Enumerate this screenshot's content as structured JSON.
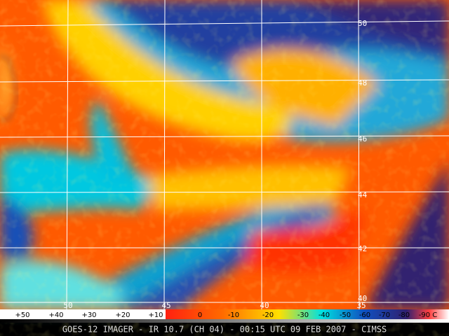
{
  "grid_labels": {
    "latitudes": [
      "50",
      "48",
      "46",
      "44",
      "42",
      "40"
    ],
    "longitudes": [
      "50",
      "45",
      "40",
      "35"
    ]
  },
  "color_scale": {
    "labels": [
      "+50",
      "+40",
      "+30",
      "+20",
      "+10",
      "0",
      "-10",
      "-20",
      "-30",
      "-40",
      "-50",
      "-60",
      "-70",
      "-80",
      "-90 C"
    ]
  },
  "caption": "GOES-12 IMAGER - IR 10.7 (CH 04) - 00:15 UTC 09 FEB 2007 - CIMSS"
}
